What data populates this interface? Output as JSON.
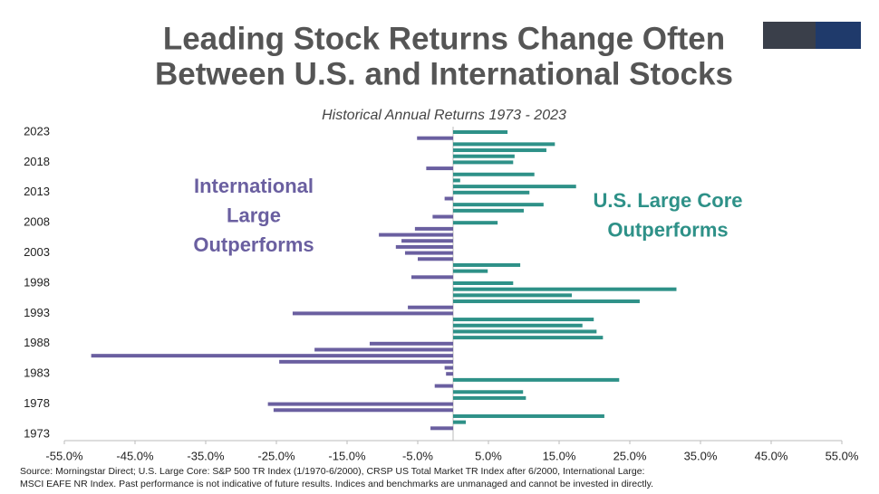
{
  "chart_data": {
    "type": "hbar",
    "title": [
      "Leading Stock Returns Change Often",
      "Between U.S. and International Stocks"
    ],
    "subtitle": "Historical Annual Returns 1973 - 2023",
    "categories": [
      "1973",
      null,
      null,
      null,
      null,
      "1978",
      null,
      null,
      null,
      null,
      "1983",
      null,
      null,
      null,
      null,
      "1988",
      null,
      null,
      null,
      null,
      "1993",
      null,
      null,
      null,
      null,
      "1998",
      null,
      null,
      null,
      null,
      "2003",
      null,
      null,
      null,
      null,
      "2008",
      null,
      null,
      null,
      null,
      "2013",
      null,
      null,
      null,
      null,
      "2018",
      null,
      null,
      null,
      null,
      "2023"
    ],
    "values": [
      0,
      -3.2,
      1.8,
      21.4,
      -25.4,
      -26.2,
      10.3,
      9.9,
      -2.6,
      23.5,
      -1.0,
      -1.2,
      -24.6,
      -51.2,
      -19.6,
      -11.8,
      21.2,
      20.3,
      18.3,
      19.9,
      -22.7,
      -6.4,
      26.4,
      16.8,
      31.6,
      8.5,
      -5.9,
      4.9,
      9.5,
      -5.0,
      -6.8,
      -8.1,
      -7.3,
      -10.5,
      -5.4,
      6.3,
      -2.9,
      10.0,
      12.8,
      -1.2,
      10.8,
      17.4,
      1.0,
      11.5,
      -3.8,
      8.5,
      8.7,
      13.2,
      14.4,
      -5.1,
      7.7
    ],
    "positive_color": "#2e9188",
    "negative_color": "#6a5fa0",
    "xlim": [
      -55,
      55
    ],
    "xticks": [
      {
        "value": -55,
        "label": "-55.0%"
      },
      {
        "value": -45,
        "label": "-45.0%"
      },
      {
        "value": -35,
        "label": "-35.0%"
      },
      {
        "value": -25,
        "label": "-25.0%"
      },
      {
        "value": -15,
        "label": "-15.0%"
      },
      {
        "value": -5,
        "label": "-5.0%"
      },
      {
        "value": 5,
        "label": "5.0%"
      },
      {
        "value": 15,
        "label": "15.0%"
      },
      {
        "value": 25,
        "label": "25.0%"
      },
      {
        "value": 35,
        "label": "35.0%"
      },
      {
        "value": 45,
        "label": "45.0%"
      },
      {
        "value": 55,
        "label": "55.0%"
      }
    ],
    "annotations": [
      {
        "lines": [
          "International",
          "Large",
          "Outperforms"
        ],
        "color": "#6a5fa0"
      },
      {
        "lines": [
          "U.S. Large Core",
          "Outperforms"
        ],
        "color": "#2e9188"
      }
    ],
    "source": "Source: Morningstar Direct; U.S. Large Core: S&P 500 TR Index (1/1970-6/2000), CRSP US Total Market TR Index after 6/2000, International Large: MSCI EAFE NR Index. Past performance is not indicative of future results. Indices and benchmarks are unmanaged and cannot be invested in directly."
  }
}
